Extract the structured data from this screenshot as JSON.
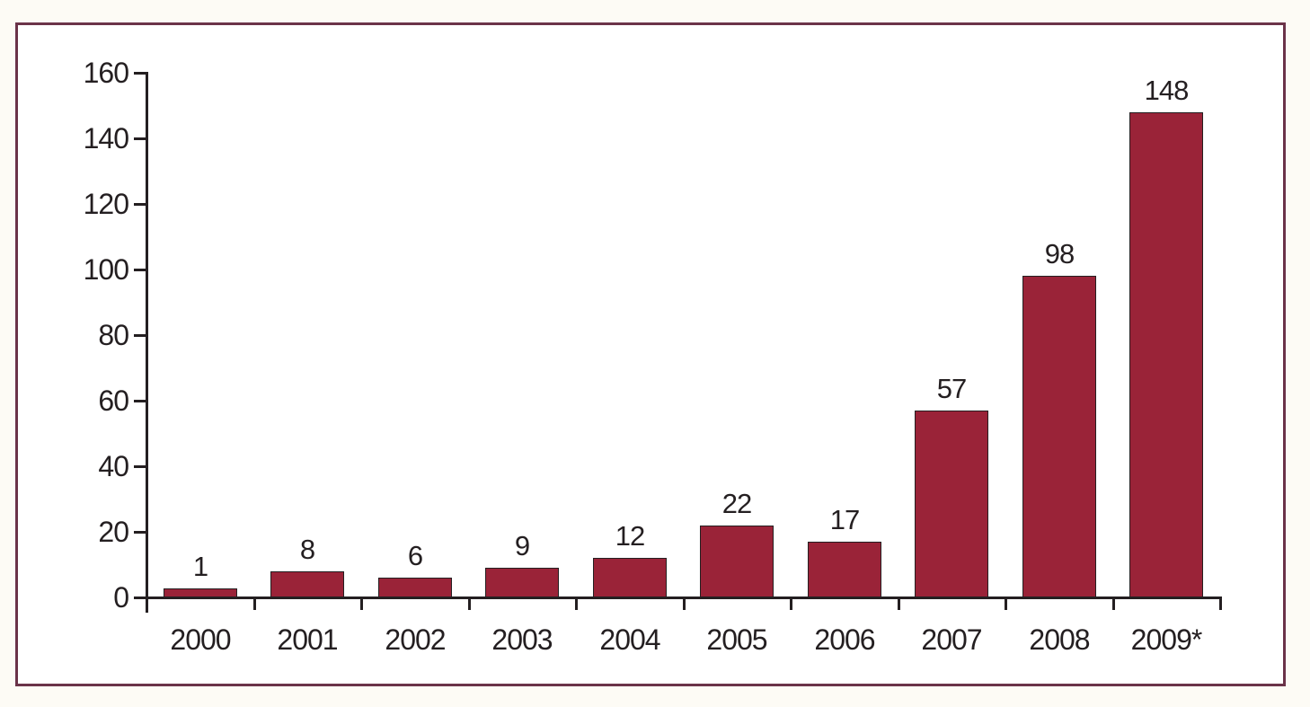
{
  "page": {
    "background": "#FDFBF5"
  },
  "frame": {
    "border_color": "#6B3349",
    "background": "#FFFFFF"
  },
  "chart_data": {
    "type": "bar",
    "categories": [
      "2000",
      "2001",
      "2002",
      "2003",
      "2004",
      "2005",
      "2006",
      "2007",
      "2008",
      "2009*"
    ],
    "values": [
      1,
      8,
      6,
      9,
      12,
      22,
      17,
      57,
      98,
      148
    ],
    "data_labels": [
      "1",
      "8",
      "6",
      "9",
      "12",
      "22",
      "17",
      "57",
      "98",
      "148"
    ],
    "title": "",
    "xlabel": "",
    "ylabel": "",
    "ylim": [
      0,
      160
    ],
    "ytick_step": 20,
    "ytick_labels": [
      "0",
      "20",
      "40",
      "60",
      "80",
      "100",
      "120",
      "140",
      "160"
    ],
    "bar_color": "#9A2338",
    "bar_border_color": "#241F21",
    "axis_color": "#241F21",
    "text_color": "#241F21",
    "grid": false,
    "legend": "none",
    "data_label_position": "above-bars"
  }
}
